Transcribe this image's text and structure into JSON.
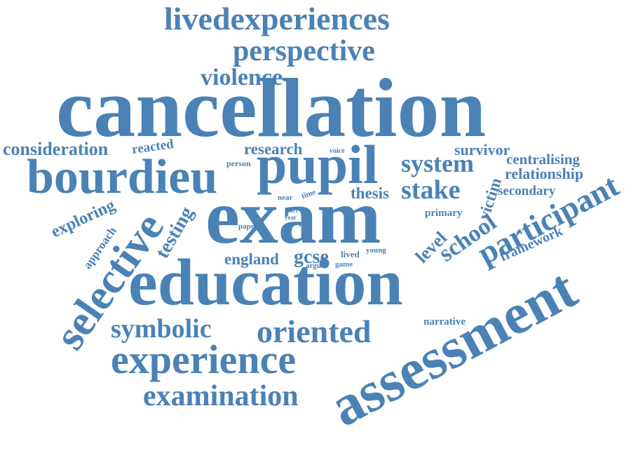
{
  "word_cloud": {
    "color": "#4a82b6",
    "words": [
      {
        "text": "cancellation",
        "rotation": "horizontal"
      },
      {
        "text": "exam",
        "rotation": "horizontal"
      },
      {
        "text": "education",
        "rotation": "horizontal"
      },
      {
        "text": "assessment",
        "rotation": "diagonal-up"
      },
      {
        "text": "pupil",
        "rotation": "horizontal"
      },
      {
        "text": "bourdieu",
        "rotation": "horizontal"
      },
      {
        "text": "selective",
        "rotation": "diagonal-up"
      },
      {
        "text": "experience",
        "rotation": "horizontal"
      },
      {
        "text": "participant",
        "rotation": "diagonal-up"
      },
      {
        "text": "livedexperiences",
        "rotation": "horizontal"
      },
      {
        "text": "perspective",
        "rotation": "horizontal"
      },
      {
        "text": "oriented",
        "rotation": "horizontal"
      },
      {
        "text": "examination",
        "rotation": "horizontal"
      },
      {
        "text": "symbolic",
        "rotation": "horizontal"
      },
      {
        "text": "system",
        "rotation": "horizontal"
      },
      {
        "text": "violence",
        "rotation": "horizontal"
      },
      {
        "text": "stake",
        "rotation": "horizontal"
      },
      {
        "text": "school",
        "rotation": "diagonal-up"
      },
      {
        "text": "testing",
        "rotation": "diagonal-up"
      },
      {
        "text": "consideration",
        "rotation": "horizontal"
      },
      {
        "text": "exploring",
        "rotation": "diagonal-up"
      },
      {
        "text": "research",
        "rotation": "horizontal"
      },
      {
        "text": "england",
        "rotation": "horizontal"
      },
      {
        "text": "gcse",
        "rotation": "horizontal"
      },
      {
        "text": "level",
        "rotation": "diagonal-up"
      },
      {
        "text": "relationship",
        "rotation": "horizontal"
      },
      {
        "text": "centralising",
        "rotation": "horizontal"
      },
      {
        "text": "survivor",
        "rotation": "horizontal"
      },
      {
        "text": "thesis",
        "rotation": "horizontal"
      },
      {
        "text": "victim",
        "rotation": "vertical-up"
      },
      {
        "text": "framework",
        "rotation": "diagonal-up"
      },
      {
        "text": "secondary",
        "rotation": "horizontal"
      },
      {
        "text": "reacted",
        "rotation": "horizontal"
      },
      {
        "text": "approach",
        "rotation": "diagonal-up"
      },
      {
        "text": "narrative",
        "rotation": "horizontal"
      },
      {
        "text": "primary",
        "rotation": "horizontal"
      },
      {
        "text": "person",
        "rotation": "horizontal"
      },
      {
        "text": "voice",
        "rotation": "horizontal"
      },
      {
        "text": "near",
        "rotation": "horizontal"
      },
      {
        "text": "time",
        "rotation": "diagonal-up"
      },
      {
        "text": "part",
        "rotation": "horizontal"
      },
      {
        "text": "year",
        "rotation": "horizontal"
      },
      {
        "text": "mis",
        "rotation": "horizontal"
      },
      {
        "text": "paper",
        "rotation": "horizontal"
      },
      {
        "text": "lived",
        "rotation": "horizontal"
      },
      {
        "text": "young",
        "rotation": "horizontal"
      },
      {
        "text": "argue",
        "rotation": "horizontal"
      },
      {
        "text": "game",
        "rotation": "horizontal"
      }
    ]
  }
}
